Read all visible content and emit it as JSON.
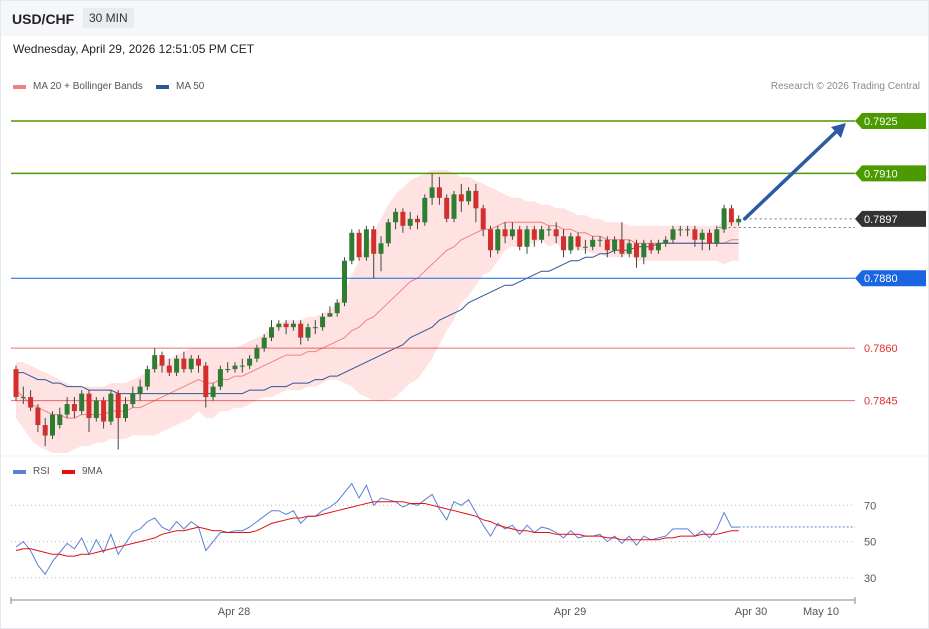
{
  "header": {
    "pair": "USD/CHF",
    "timeframe": "30 MIN"
  },
  "timestamp": "Wednesday, April 29, 2026 12:51:05 PM CET",
  "legend": {
    "ma20": {
      "label": "MA 20 + Bollinger Bands",
      "color": "#f08080"
    },
    "ma50": {
      "label": "MA 50",
      "color": "#2b5797"
    }
  },
  "credit": "Research © 2026 Trading Central",
  "rsi_legend": {
    "rsi": {
      "label": "RSI",
      "color": "#5b7fd6"
    },
    "ma9": {
      "label": "9MA",
      "color": "#e01010"
    }
  },
  "chart_data": {
    "type": "candlestick",
    "timeframe": "30 MIN",
    "price_axis": {
      "min": 0.7828,
      "max": 0.7937
    },
    "levels": [
      {
        "value": 0.7925,
        "label": "0.7925",
        "kind": "resistance",
        "color": "#4a9a00"
      },
      {
        "value": 0.791,
        "label": "0.7910",
        "kind": "resistance",
        "color": "#4a9a00"
      },
      {
        "value": 0.7897,
        "label": "0.7897",
        "kind": "last",
        "color": "#333333"
      },
      {
        "value": 0.788,
        "label": "0.7880",
        "kind": "pivot",
        "color": "#1a66e0"
      },
      {
        "value": 0.786,
        "label": "0.7860",
        "kind": "support",
        "color": "#e03030"
      },
      {
        "value": 0.7845,
        "label": "0.7845",
        "kind": "support",
        "color": "#e03030"
      }
    ],
    "target_arrow": {
      "from": 0.7897,
      "to": 0.7925
    },
    "x_labels": [
      "Apr 28",
      "Apr 29",
      "Apr 30",
      "May 10"
    ],
    "candles": [
      [
        0.7854,
        0.7846,
        0.7855,
        0.7845
      ],
      [
        0.7846,
        0.7846,
        0.7849,
        0.7844
      ],
      [
        0.7846,
        0.7843,
        0.7848,
        0.7842
      ],
      [
        0.7843,
        0.7838,
        0.7844,
        0.7836
      ],
      [
        0.7838,
        0.7835,
        0.784,
        0.7832
      ],
      [
        0.7835,
        0.7841,
        0.7842,
        0.7834
      ],
      [
        0.7838,
        0.7841,
        0.7843,
        0.7837
      ],
      [
        0.7841,
        0.7844,
        0.7846,
        0.784
      ],
      [
        0.7844,
        0.7842,
        0.7846,
        0.784
      ],
      [
        0.7842,
        0.7847,
        0.7848,
        0.7841
      ],
      [
        0.7847,
        0.784,
        0.7848,
        0.7836
      ],
      [
        0.784,
        0.7845,
        0.7846,
        0.7839
      ],
      [
        0.7845,
        0.7839,
        0.7846,
        0.7837
      ],
      [
        0.7839,
        0.7847,
        0.7848,
        0.7838
      ],
      [
        0.7847,
        0.784,
        0.7848,
        0.7831
      ],
      [
        0.784,
        0.7844,
        0.7846,
        0.7839
      ],
      [
        0.7844,
        0.7847,
        0.7849,
        0.7843
      ],
      [
        0.7847,
        0.7849,
        0.7851,
        0.7845
      ],
      [
        0.7849,
        0.7854,
        0.7855,
        0.7848
      ],
      [
        0.7854,
        0.7858,
        0.786,
        0.7853
      ],
      [
        0.7858,
        0.7855,
        0.7859,
        0.7853
      ],
      [
        0.7855,
        0.7853,
        0.7857,
        0.7852
      ],
      [
        0.7853,
        0.7857,
        0.7858,
        0.7852
      ],
      [
        0.7857,
        0.7854,
        0.7859,
        0.7853
      ],
      [
        0.7854,
        0.7857,
        0.7858,
        0.7853
      ],
      [
        0.7857,
        0.7855,
        0.7858,
        0.7853
      ],
      [
        0.7855,
        0.7846,
        0.7856,
        0.7843
      ],
      [
        0.7846,
        0.7849,
        0.785,
        0.7845
      ],
      [
        0.7849,
        0.7854,
        0.7855,
        0.7848
      ],
      [
        0.7854,
        0.7854,
        0.7856,
        0.7853
      ],
      [
        0.7854,
        0.7855,
        0.7856,
        0.7853
      ],
      [
        0.7855,
        0.7855,
        0.7857,
        0.7853
      ],
      [
        0.7855,
        0.7857,
        0.7858,
        0.7854
      ],
      [
        0.7857,
        0.786,
        0.7861,
        0.7856
      ],
      [
        0.786,
        0.7863,
        0.7864,
        0.7859
      ],
      [
        0.7863,
        0.7866,
        0.7868,
        0.7862
      ],
      [
        0.7866,
        0.7867,
        0.7868,
        0.7865
      ],
      [
        0.7867,
        0.7866,
        0.7868,
        0.7864
      ],
      [
        0.7866,
        0.7867,
        0.7868,
        0.7865
      ],
      [
        0.7867,
        0.7863,
        0.7868,
        0.7861
      ],
      [
        0.7863,
        0.7866,
        0.7867,
        0.7862
      ],
      [
        0.7866,
        0.7866,
        0.7868,
        0.7864
      ],
      [
        0.7866,
        0.7869,
        0.787,
        0.7865
      ],
      [
        0.7869,
        0.787,
        0.7872,
        0.7869
      ],
      [
        0.787,
        0.7873,
        0.7874,
        0.7869
      ],
      [
        0.7873,
        0.7885,
        0.7886,
        0.7872
      ],
      [
        0.7885,
        0.7893,
        0.7894,
        0.7884
      ],
      [
        0.7893,
        0.7886,
        0.7894,
        0.7885
      ],
      [
        0.7886,
        0.7894,
        0.7895,
        0.7885
      ],
      [
        0.7894,
        0.7887,
        0.7895,
        0.788
      ],
      [
        0.7887,
        0.789,
        0.7892,
        0.7882
      ],
      [
        0.789,
        0.7896,
        0.7897,
        0.7889
      ],
      [
        0.7896,
        0.7899,
        0.79,
        0.7894
      ],
      [
        0.7899,
        0.7895,
        0.79,
        0.7893
      ],
      [
        0.7895,
        0.7897,
        0.7899,
        0.7894
      ],
      [
        0.7897,
        0.7896,
        0.7898,
        0.7894
      ],
      [
        0.7896,
        0.7903,
        0.7904,
        0.7895
      ],
      [
        0.7903,
        0.7906,
        0.791,
        0.7901
      ],
      [
        0.7906,
        0.7903,
        0.7909,
        0.7901
      ],
      [
        0.7903,
        0.7897,
        0.7904,
        0.7896
      ],
      [
        0.7897,
        0.7904,
        0.7905,
        0.7896
      ],
      [
        0.7904,
        0.7902,
        0.7907,
        0.7899
      ],
      [
        0.7902,
        0.7905,
        0.7906,
        0.7901
      ],
      [
        0.7905,
        0.79,
        0.7907,
        0.7896
      ],
      [
        0.79,
        0.7894,
        0.7901,
        0.7892
      ],
      [
        0.7894,
        0.7888,
        0.7895,
        0.7886
      ],
      [
        0.7888,
        0.7894,
        0.7895,
        0.7887
      ],
      [
        0.7894,
        0.7892,
        0.7896,
        0.789
      ],
      [
        0.7892,
        0.7894,
        0.7896,
        0.7891
      ],
      [
        0.7894,
        0.7889,
        0.7895,
        0.7888
      ],
      [
        0.7889,
        0.7894,
        0.7895,
        0.7887
      ],
      [
        0.7894,
        0.7891,
        0.7895,
        0.7889
      ],
      [
        0.7891,
        0.7894,
        0.7895,
        0.789
      ],
      [
        0.7894,
        0.7894,
        0.7895,
        0.7892
      ],
      [
        0.7894,
        0.7892,
        0.7896,
        0.789
      ],
      [
        0.7892,
        0.7888,
        0.7894,
        0.7886
      ],
      [
        0.7888,
        0.7892,
        0.7893,
        0.7887
      ],
      [
        0.7892,
        0.7889,
        0.7893,
        0.7888
      ],
      [
        0.7889,
        0.7889,
        0.7891,
        0.7887
      ],
      [
        0.7889,
        0.7891,
        0.7892,
        0.7888
      ],
      [
        0.7891,
        0.7891,
        0.7892,
        0.7889
      ],
      [
        0.7891,
        0.7888,
        0.7892,
        0.7886
      ],
      [
        0.7888,
        0.7891,
        0.7892,
        0.7887
      ],
      [
        0.7891,
        0.7887,
        0.7896,
        0.7886
      ],
      [
        0.7887,
        0.789,
        0.7891,
        0.7886
      ],
      [
        0.789,
        0.7886,
        0.7891,
        0.7883
      ],
      [
        0.7886,
        0.789,
        0.7891,
        0.7884
      ],
      [
        0.789,
        0.7888,
        0.7891,
        0.7887
      ],
      [
        0.7888,
        0.789,
        0.7891,
        0.7887
      ],
      [
        0.789,
        0.7891,
        0.7892,
        0.7889
      ],
      [
        0.7891,
        0.7894,
        0.7895,
        0.789
      ],
      [
        0.7894,
        0.7894,
        0.7895,
        0.7892
      ],
      [
        0.7894,
        0.7894,
        0.7895,
        0.7892
      ],
      [
        0.7894,
        0.7891,
        0.7895,
        0.7889
      ],
      [
        0.7891,
        0.7893,
        0.7894,
        0.7888
      ],
      [
        0.7893,
        0.789,
        0.7894,
        0.7888
      ],
      [
        0.789,
        0.7894,
        0.7895,
        0.7889
      ],
      [
        0.7894,
        0.79,
        0.7901,
        0.7893
      ],
      [
        0.79,
        0.7896,
        0.7901,
        0.7895
      ],
      [
        0.7896,
        0.7897,
        0.7898,
        0.7895
      ]
    ],
    "ma20": [
      0.7848,
      0.7846,
      0.7844,
      0.7843,
      0.7842,
      0.7841,
      0.7841,
      0.784,
      0.784,
      0.7841,
      0.7841,
      0.7841,
      0.7841,
      0.7842,
      0.7842,
      0.7842,
      0.7843,
      0.7843,
      0.7844,
      0.7845,
      0.7846,
      0.7847,
      0.7848,
      0.7849,
      0.785,
      0.7851,
      0.785,
      0.785,
      0.7851,
      0.7851,
      0.7852,
      0.7852,
      0.7853,
      0.7854,
      0.7855,
      0.7856,
      0.7857,
      0.7858,
      0.7858,
      0.7858,
      0.7859,
      0.7859,
      0.786,
      0.7861,
      0.7862,
      0.7863,
      0.7865,
      0.7866,
      0.7868,
      0.7869,
      0.7871,
      0.7873,
      0.7875,
      0.7877,
      0.7879,
      0.788,
      0.7882,
      0.7884,
      0.7886,
      0.7888,
      0.7889,
      0.7891,
      0.7892,
      0.7893,
      0.7894,
      0.7894,
      0.7895,
      0.7896,
      0.7896,
      0.7896,
      0.7896,
      0.7896,
      0.7896,
      0.7895,
      0.7895,
      0.7894,
      0.7894,
      0.7893,
      0.7893,
      0.7892,
      0.7892,
      0.7891,
      0.7891,
      0.7891,
      0.7891,
      0.789,
      0.789,
      0.789,
      0.789,
      0.789,
      0.789,
      0.789,
      0.789,
      0.789,
      0.789,
      0.789,
      0.789,
      0.789,
      0.7891,
      0.7891
    ],
    "ma50": [
      0.7853,
      0.7853,
      0.7852,
      0.7851,
      0.7851,
      0.785,
      0.785,
      0.7849,
      0.7849,
      0.7849,
      0.7848,
      0.7848,
      0.7848,
      0.7848,
      0.7847,
      0.7847,
      0.7847,
      0.7847,
      0.7847,
      0.7847,
      0.7847,
      0.7847,
      0.7847,
      0.7847,
      0.7847,
      0.7847,
      0.7847,
      0.7847,
      0.7847,
      0.7847,
      0.7847,
      0.7847,
      0.7848,
      0.7848,
      0.7848,
      0.7849,
      0.7849,
      0.7849,
      0.785,
      0.785,
      0.785,
      0.7851,
      0.7851,
      0.7852,
      0.7852,
      0.7853,
      0.7854,
      0.7855,
      0.7856,
      0.7857,
      0.7858,
      0.7859,
      0.786,
      0.7861,
      0.7863,
      0.7864,
      0.7865,
      0.7866,
      0.7868,
      0.7869,
      0.787,
      0.7871,
      0.7873,
      0.7874,
      0.7875,
      0.7876,
      0.7877,
      0.7878,
      0.7878,
      0.7879,
      0.788,
      0.7881,
      0.7882,
      0.7882,
      0.7883,
      0.7884,
      0.7885,
      0.7885,
      0.7886,
      0.7886,
      0.7887,
      0.7887,
      0.7888,
      0.7888,
      0.7888,
      0.7889,
      0.7889,
      0.7889,
      0.789,
      0.789,
      0.789,
      0.789,
      0.789,
      0.789,
      0.789,
      0.789,
      0.789,
      0.789,
      0.789,
      0.789
    ],
    "bb_upper": [
      0.7856,
      0.7856,
      0.7855,
      0.7854,
      0.7853,
      0.7852,
      0.7851,
      0.785,
      0.7849,
      0.7849,
      0.7849,
      0.7849,
      0.7849,
      0.785,
      0.785,
      0.785,
      0.7851,
      0.7852,
      0.7853,
      0.7855,
      0.7856,
      0.7857,
      0.7858,
      0.7859,
      0.786,
      0.786,
      0.786,
      0.786,
      0.786,
      0.786,
      0.786,
      0.7861,
      0.7862,
      0.7863,
      0.7864,
      0.7866,
      0.7867,
      0.7868,
      0.7868,
      0.7868,
      0.7869,
      0.7869,
      0.787,
      0.7871,
      0.7873,
      0.7876,
      0.7881,
      0.7885,
      0.789,
      0.7893,
      0.7897,
      0.7901,
      0.7904,
      0.7906,
      0.7908,
      0.7909,
      0.791,
      0.7911,
      0.7911,
      0.7911,
      0.791,
      0.7909,
      0.7909,
      0.7908,
      0.7907,
      0.7906,
      0.7905,
      0.7904,
      0.7903,
      0.7903,
      0.7902,
      0.7902,
      0.7901,
      0.7901,
      0.79,
      0.79,
      0.7899,
      0.7898,
      0.7898,
      0.7897,
      0.7897,
      0.7896,
      0.7896,
      0.7896,
      0.7895,
      0.7895,
      0.7895,
      0.7895,
      0.7895,
      0.7895,
      0.7895,
      0.7895,
      0.7895,
      0.7895,
      0.7895,
      0.7895,
      0.7895,
      0.7896,
      0.7897,
      0.7897
    ],
    "bb_lower": [
      0.784,
      0.7837,
      0.7834,
      0.7832,
      0.7831,
      0.783,
      0.783,
      0.783,
      0.7831,
      0.7832,
      0.7832,
      0.7833,
      0.7833,
      0.7834,
      0.7834,
      0.7834,
      0.7835,
      0.7835,
      0.7835,
      0.7835,
      0.7836,
      0.7837,
      0.7838,
      0.7839,
      0.784,
      0.7842,
      0.784,
      0.784,
      0.7842,
      0.7842,
      0.7843,
      0.7843,
      0.7844,
      0.7845,
      0.7846,
      0.7846,
      0.7847,
      0.7848,
      0.7848,
      0.7848,
      0.7849,
      0.7849,
      0.785,
      0.7851,
      0.7851,
      0.785,
      0.7849,
      0.7847,
      0.7846,
      0.7845,
      0.7845,
      0.7845,
      0.7846,
      0.7848,
      0.785,
      0.7851,
      0.7854,
      0.7857,
      0.7861,
      0.7865,
      0.7868,
      0.7873,
      0.7875,
      0.7878,
      0.7881,
      0.7882,
      0.7885,
      0.7888,
      0.7889,
      0.7889,
      0.789,
      0.789,
      0.7891,
      0.7889,
      0.789,
      0.7888,
      0.7889,
      0.7888,
      0.7888,
      0.7887,
      0.7887,
      0.7886,
      0.7886,
      0.7886,
      0.7887,
      0.7885,
      0.7885,
      0.7885,
      0.7885,
      0.7885,
      0.7885,
      0.7885,
      0.7885,
      0.7885,
      0.7885,
      0.7885,
      0.7885,
      0.7884,
      0.7885,
      0.7885
    ],
    "rsi": [
      47,
      50,
      45,
      37,
      32,
      39,
      44,
      49,
      46,
      52,
      43,
      51,
      44,
      54,
      43,
      49,
      55,
      57,
      61,
      63,
      58,
      56,
      61,
      57,
      61,
      58,
      45,
      50,
      55,
      55,
      56,
      56,
      58,
      61,
      64,
      67,
      67,
      65,
      67,
      60,
      64,
      64,
      67,
      69,
      72,
      77,
      82,
      74,
      81,
      70,
      74,
      73,
      72,
      69,
      71,
      70,
      73,
      76,
      68,
      62,
      72,
      70,
      73,
      66,
      59,
      53,
      60,
      57,
      59,
      54,
      59,
      55,
      58,
      57,
      55,
      52,
      56,
      52,
      53,
      53,
      54,
      50,
      53,
      49,
      53,
      48,
      53,
      51,
      52,
      53,
      57,
      57,
      57,
      53,
      56,
      52,
      57,
      66,
      58,
      58
    ],
    "rsi_ma9": [
      45,
      46,
      46,
      45,
      44,
      43,
      43,
      42,
      42,
      43,
      43,
      44,
      45,
      46,
      47,
      48,
      49,
      50,
      51,
      52,
      54,
      55,
      56,
      56,
      57,
      58,
      57,
      56,
      56,
      55,
      55,
      55,
      55,
      56,
      58,
      60,
      61,
      62,
      63,
      63,
      64,
      64,
      65,
      66,
      67,
      68,
      69,
      70,
      71,
      72,
      72,
      72,
      72,
      72,
      71,
      71,
      71,
      70,
      69,
      68,
      67,
      66,
      65,
      64,
      62,
      61,
      59,
      58,
      57,
      56,
      56,
      55,
      55,
      55,
      54,
      54,
      54,
      54,
      53,
      53,
      53,
      52,
      52,
      51,
      51,
      51,
      51,
      51,
      51,
      52,
      52,
      53,
      53,
      53,
      54,
      54,
      54,
      55,
      56,
      56
    ],
    "rsi_axis": {
      "min": 20,
      "max": 90,
      "ticks": [
        70,
        50,
        30
      ]
    }
  }
}
